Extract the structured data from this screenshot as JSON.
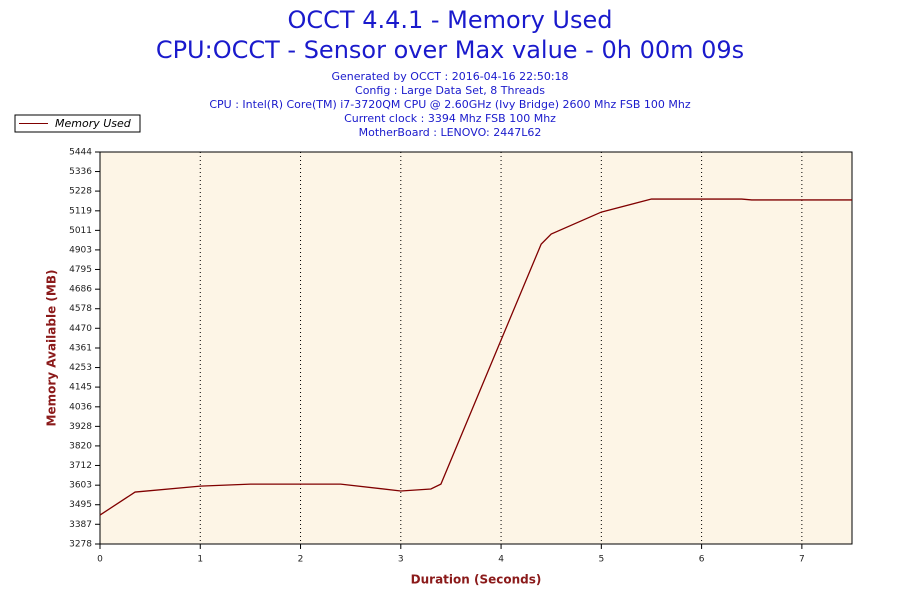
{
  "chart_data": {
    "type": "line",
    "title": "OCCT 4.4.1 - Memory Used",
    "subtitle": "CPU:OCCT - Sensor over Max value - 0h 00m 09s",
    "info": [
      "Generated by OCCT : 2016-04-16 22:50:18",
      "Config : Large Data Set, 8 Threads",
      "CPU : Intel(R) Core(TM) i7-3720QM CPU @ 2.60GHz (Ivy Bridge) 2600 Mhz FSB 100 Mhz",
      "Current clock : 3394 Mhz FSB 100 Mhz",
      "MotherBoard : LENOVO: 2447L62"
    ],
    "xlabel": "Duration (Seconds)",
    "ylabel": "Memory Available (MB)",
    "x": [
      0,
      0.35,
      1,
      1.5,
      2,
      2.4,
      3,
      3.3,
      3.4,
      4,
      4.4,
      4.5,
      5,
      5.5,
      6.4,
      6.5,
      7.5
    ],
    "series": [
      {
        "name": "Memory Used",
        "color": "#800000",
        "values": [
          3438,
          3565,
          3598,
          3609,
          3609,
          3609,
          3571,
          3582,
          3609,
          4405,
          4935,
          4991,
          5112,
          5184,
          5184,
          5179,
          5179
        ]
      }
    ],
    "xlim": [
      0,
      7.5
    ],
    "xticks": [
      0,
      1,
      2,
      3,
      4,
      5,
      6,
      7
    ],
    "ylim": [
      3278,
      5444
    ],
    "yticks": [
      3278,
      3387,
      3495,
      3603,
      3712,
      3820,
      3928,
      4036,
      4145,
      4253,
      4361,
      4470,
      4578,
      4686,
      4795,
      4903,
      5011,
      5119,
      5228,
      5336,
      5444
    ],
    "grid": true,
    "legend": "top-left",
    "background": "#fdf5e6"
  }
}
